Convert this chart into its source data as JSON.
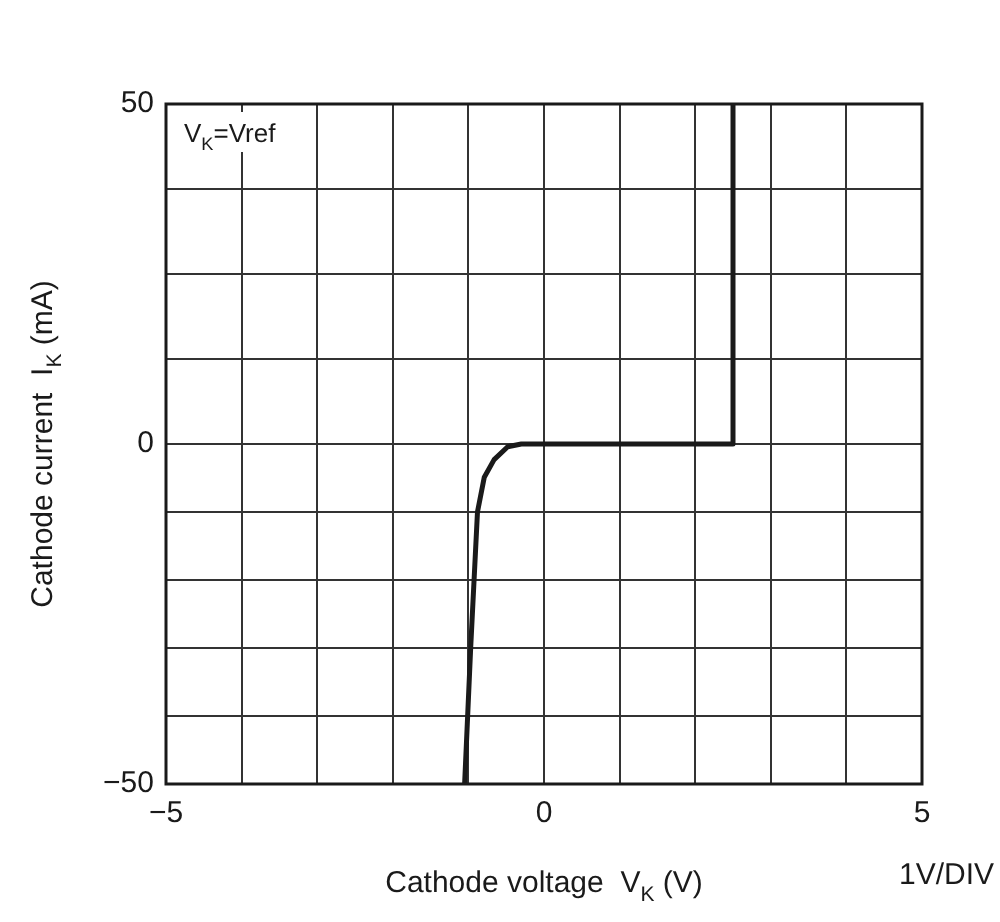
{
  "chart_data": {
    "type": "line",
    "xlabel": "Cathode voltage  V$_{K}$ (V)",
    "ylabel": "Cathode current  I$_{K}$ (mA)",
    "annotations": [
      "V$_{K}$=Vref",
      "1V/DIV"
    ],
    "series": [
      {
        "color": "#1a1a1a",
        "x": [
          -1.05,
          -0.97,
          -0.88,
          -0.79,
          -0.66,
          -0.48,
          -0.3,
          2.5,
          2.5
        ],
        "values": [
          -50,
          -30,
          -10,
          -4.9,
          -2.3,
          -0.4,
          0,
          0,
          50
        ]
      }
    ],
    "xlim": [
      -5,
      5
    ],
    "xticks": [
      -5,
      {
        "value": -4,
        "label": null
      },
      {
        "value": -3,
        "label": null
      },
      {
        "value": -2,
        "label": null
      },
      {
        "value": -1,
        "label": null
      },
      0,
      {
        "value": 1,
        "label": null
      },
      {
        "value": 2,
        "label": null
      },
      {
        "value": 3,
        "label": null
      },
      {
        "value": 4,
        "label": null
      },
      5
    ],
    "ylim": [
      -50,
      50
    ],
    "yticks": [
      -50,
      {
        "value": -40,
        "label": null
      },
      {
        "value": -30,
        "label": null
      },
      {
        "value": -20,
        "label": null
      },
      {
        "value": -10,
        "label": null
      },
      0,
      {
        "value": 12.5,
        "label": null
      },
      {
        "value": 25,
        "label": null
      },
      {
        "value": 37.5,
        "label": null
      },
      50
    ],
    "grid": true,
    "legend": false,
    "marker": "none",
    "line_style": "solid"
  }
}
